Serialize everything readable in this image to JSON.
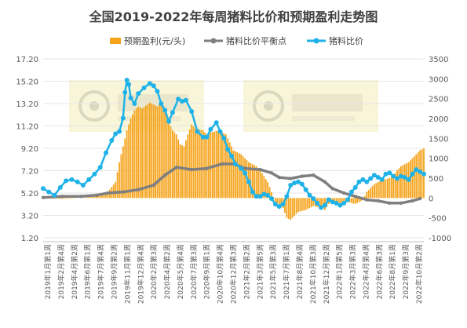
{
  "chart_data": {
    "type": "bar+line",
    "title": "全国2019-2022年每周猪料比价和预期盈利走势图",
    "legend": {
      "placement": "top",
      "items": [
        {
          "name": "预期盈利(元/头)",
          "kind": "bar",
          "color": "#f5a31a"
        },
        {
          "name": "猪料比价平衡点",
          "kind": "line",
          "color": "#7f7f7f"
        },
        {
          "name": "猪料比价",
          "kind": "line",
          "color": "#1fb2e8"
        }
      ]
    },
    "left_axis": {
      "ylim": [
        1.2,
        17.2
      ],
      "ticks": [
        "1.20",
        "3.20",
        "5.20",
        "7.20",
        "9.20",
        "11.20",
        "13.20",
        "15.20",
        "17.20"
      ]
    },
    "right_axis": {
      "ylim": [
        -1000,
        3500
      ],
      "ticks": [
        "-1000",
        "-500",
        "0",
        "500",
        "1000",
        "1500",
        "2000",
        "2500",
        "3000",
        "3500"
      ]
    },
    "x_ticks": [
      "2019年1月第1周",
      "2019年2月第4周",
      "2019年4月第2周",
      "2019年6月第1周",
      "2019年7月第4周",
      "2019年9月第2周",
      "2019年11月第1周",
      "2019年12月第4周",
      "2020年2月第3周",
      "2020年4月第2周",
      "2020年5月第4周",
      "2020年7月第3周",
      "2020年9月第1周",
      "2020年10月第4周",
      "2020年12月第3周",
      "2021年2月第2周",
      "2021年3月第5周",
      "2021年5月第3周",
      "2021年7月第1周",
      "2021年8月第4周",
      "2021年10月第3周",
      "2021年12月第2周",
      "2022年1月第5周",
      "2022年3月第3周",
      "2022年4月第4周",
      "2022年6月第3周",
      "2022年8月第1周",
      "2022年9月第3周",
      "2022年10月第2周"
    ],
    "x_range": [
      0,
      200
    ],
    "breakeven_ratio": {
      "name": "猪料比价平衡点",
      "points": [
        [
          0,
          4.8
        ],
        [
          10,
          4.9
        ],
        [
          20,
          4.9
        ],
        [
          28,
          5.0
        ],
        [
          34,
          5.2
        ],
        [
          42,
          5.3
        ],
        [
          50,
          5.5
        ],
        [
          58,
          5.9
        ],
        [
          64,
          6.8
        ],
        [
          70,
          7.5
        ],
        [
          78,
          7.3
        ],
        [
          86,
          7.4
        ],
        [
          94,
          7.8
        ],
        [
          100,
          7.8
        ],
        [
          106,
          7.4
        ],
        [
          114,
          7.3
        ],
        [
          120,
          7.0
        ],
        [
          124,
          6.6
        ],
        [
          130,
          6.5
        ],
        [
          136,
          6.7
        ],
        [
          142,
          6.8
        ],
        [
          148,
          6.2
        ],
        [
          152,
          5.6
        ],
        [
          158,
          5.2
        ],
        [
          164,
          4.9
        ],
        [
          170,
          4.6
        ],
        [
          176,
          4.5
        ],
        [
          182,
          4.3
        ],
        [
          188,
          4.3
        ],
        [
          194,
          4.5
        ],
        [
          198,
          4.7
        ]
      ]
    },
    "hog_feed_ratio": {
      "name": "猪料比价",
      "points": [
        [
          0,
          5.6
        ],
        [
          3,
          5.3
        ],
        [
          6,
          5.0
        ],
        [
          9,
          5.7
        ],
        [
          12,
          6.3
        ],
        [
          15,
          6.4
        ],
        [
          18,
          6.2
        ],
        [
          21,
          5.9
        ],
        [
          24,
          6.4
        ],
        [
          27,
          6.9
        ],
        [
          30,
          7.5
        ],
        [
          33,
          8.8
        ],
        [
          36,
          9.9
        ],
        [
          38,
          10.5
        ],
        [
          40,
          10.7
        ],
        [
          42,
          11.9
        ],
        [
          43,
          14.2
        ],
        [
          44,
          15.3
        ],
        [
          45,
          14.9
        ],
        [
          46,
          13.7
        ],
        [
          48,
          13.2
        ],
        [
          50,
          14.1
        ],
        [
          53,
          14.6
        ],
        [
          56,
          15.0
        ],
        [
          58,
          14.8
        ],
        [
          60,
          14.3
        ],
        [
          62,
          13.2
        ],
        [
          64,
          12.6
        ],
        [
          66,
          11.6
        ],
        [
          68,
          12.4
        ],
        [
          71,
          13.6
        ],
        [
          73,
          13.4
        ],
        [
          75,
          13.5
        ],
        [
          78,
          12.5
        ],
        [
          81,
          10.7
        ],
        [
          84,
          10.2
        ],
        [
          86,
          10.2
        ],
        [
          88,
          10.9
        ],
        [
          91,
          11.5
        ],
        [
          93,
          10.7
        ],
        [
          95,
          10.1
        ],
        [
          97,
          9.1
        ],
        [
          99,
          8.5
        ],
        [
          101,
          7.8
        ],
        [
          104,
          7.4
        ],
        [
          106,
          7.0
        ],
        [
          108,
          6.2
        ],
        [
          110,
          5.3
        ],
        [
          112,
          4.9
        ],
        [
          114,
          4.9
        ],
        [
          116,
          5.1
        ],
        [
          118,
          5.0
        ],
        [
          120,
          4.7
        ],
        [
          122,
          4.2
        ],
        [
          124,
          4.0
        ],
        [
          126,
          4.2
        ],
        [
          128,
          4.9
        ],
        [
          130,
          5.9
        ],
        [
          132,
          6.1
        ],
        [
          134,
          6.2
        ],
        [
          136,
          6.0
        ],
        [
          138,
          5.5
        ],
        [
          140,
          5.0
        ],
        [
          142,
          4.7
        ],
        [
          144,
          4.3
        ],
        [
          146,
          3.9
        ],
        [
          148,
          4.1
        ],
        [
          150,
          4.6
        ],
        [
          152,
          4.4
        ],
        [
          154,
          4.3
        ],
        [
          156,
          4.1
        ],
        [
          158,
          4.3
        ],
        [
          160,
          4.6
        ],
        [
          162,
          5.3
        ],
        [
          164,
          5.7
        ],
        [
          166,
          6.2
        ],
        [
          168,
          6.4
        ],
        [
          170,
          6.2
        ],
        [
          172,
          6.5
        ],
        [
          174,
          6.8
        ],
        [
          176,
          6.6
        ],
        [
          178,
          6.4
        ],
        [
          180,
          6.9
        ],
        [
          182,
          7.0
        ],
        [
          184,
          6.7
        ],
        [
          186,
          6.5
        ],
        [
          188,
          6.7
        ],
        [
          190,
          6.6
        ],
        [
          192,
          6.4
        ],
        [
          194,
          6.9
        ],
        [
          196,
          7.3
        ],
        [
          198,
          7.1
        ],
        [
          200,
          6.9
        ]
      ]
    },
    "expected_profit": {
      "name": "预期盈利(元/头)",
      "points": [
        [
          0,
          0
        ],
        [
          10,
          -20
        ],
        [
          20,
          0
        ],
        [
          30,
          50
        ],
        [
          34,
          150
        ],
        [
          38,
          400
        ],
        [
          40,
          900
        ],
        [
          42,
          1300
        ],
        [
          44,
          1700
        ],
        [
          46,
          2000
        ],
        [
          48,
          2200
        ],
        [
          50,
          2300
        ],
        [
          52,
          2250
        ],
        [
          56,
          2400
        ],
        [
          60,
          2300
        ],
        [
          62,
          2400
        ],
        [
          64,
          2200
        ],
        [
          66,
          1900
        ],
        [
          68,
          1700
        ],
        [
          70,
          1600
        ],
        [
          72,
          1350
        ],
        [
          74,
          1300
        ],
        [
          76,
          1600
        ],
        [
          78,
          1850
        ],
        [
          80,
          1750
        ],
        [
          84,
          1700
        ],
        [
          86,
          1600
        ],
        [
          88,
          1650
        ],
        [
          92,
          1700
        ],
        [
          96,
          1600
        ],
        [
          100,
          1200
        ],
        [
          104,
          1100
        ],
        [
          108,
          900
        ],
        [
          112,
          800
        ],
        [
          114,
          700
        ],
        [
          118,
          400
        ],
        [
          122,
          -100
        ],
        [
          126,
          -250
        ],
        [
          128,
          -500
        ],
        [
          130,
          -550
        ],
        [
          134,
          -350
        ],
        [
          138,
          -300
        ],
        [
          142,
          -200
        ],
        [
          146,
          -250
        ],
        [
          148,
          -300
        ],
        [
          150,
          -150
        ],
        [
          152,
          -100
        ],
        [
          156,
          -200
        ],
        [
          160,
          -100
        ],
        [
          164,
          -150
        ],
        [
          168,
          -50
        ],
        [
          170,
          150
        ],
        [
          172,
          250
        ],
        [
          174,
          350
        ],
        [
          178,
          450
        ],
        [
          182,
          500
        ],
        [
          184,
          550
        ],
        [
          186,
          700
        ],
        [
          188,
          800
        ],
        [
          190,
          850
        ],
        [
          192,
          900
        ],
        [
          194,
          1000
        ],
        [
          196,
          1100
        ],
        [
          198,
          1200
        ],
        [
          200,
          1250
        ]
      ]
    }
  }
}
